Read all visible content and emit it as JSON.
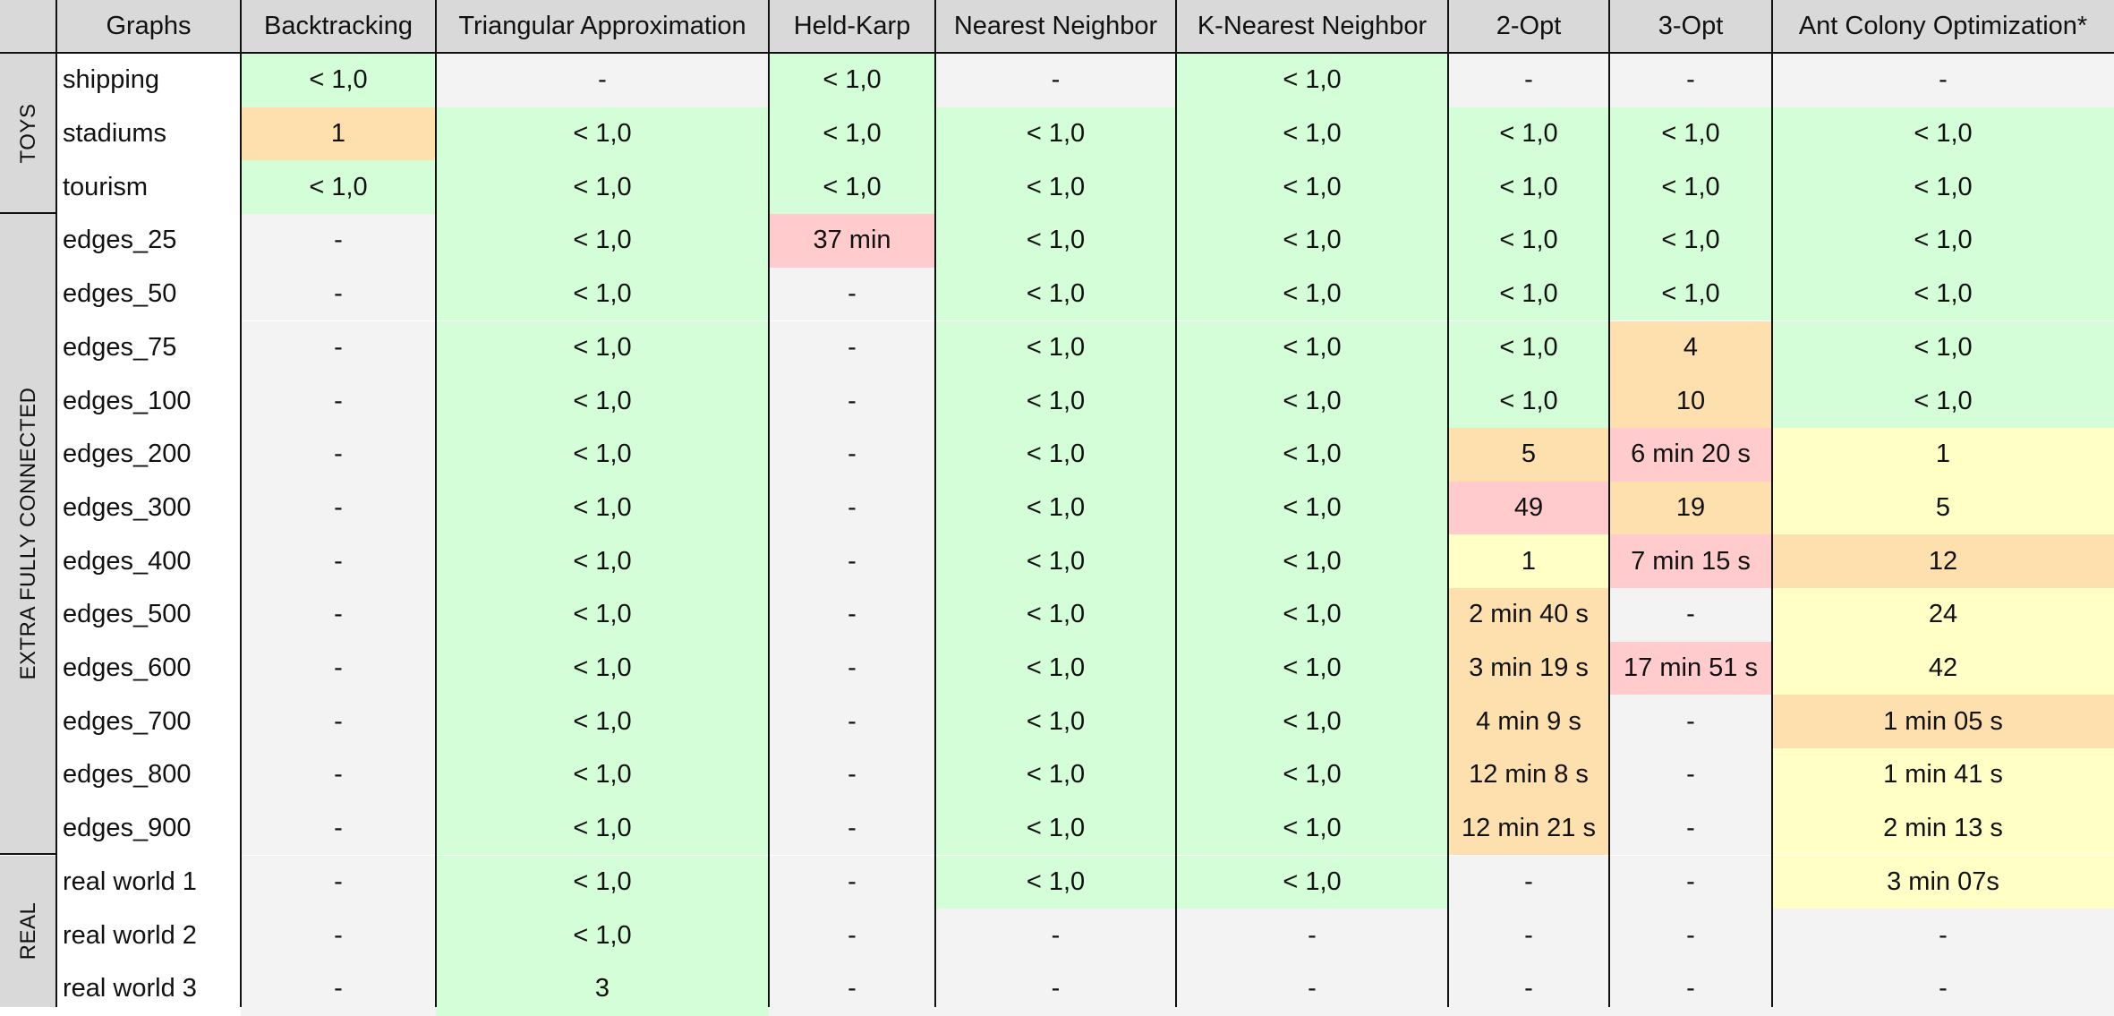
{
  "colors": {
    "header": "#d9d9d9",
    "green": "#d3fed8",
    "gray": "#f3f3f3",
    "orange": "#fde0ad",
    "pink": "#ffcbcc",
    "yellow": "#ffffc6",
    "rowlabel": "#ffffff"
  },
  "table": {
    "columns": [
      "Graphs",
      "Backtracking",
      "Triangular Approximation",
      "Held-Karp",
      "Nearest Neighbor",
      "K-Nearest Neighbor",
      "2-Opt",
      "3-Opt",
      "Ant Colony Optimization*"
    ],
    "groups": [
      {
        "label": "TOYS",
        "rows": 3
      },
      {
        "label": "EXTRA FULLY CONNECTED",
        "rows": 12
      },
      {
        "label": "REAL",
        "rows": 3
      }
    ],
    "rows": [
      {
        "name": "shipping",
        "cells": [
          [
            "< 1,0",
            "green"
          ],
          [
            "-",
            "gray"
          ],
          [
            "< 1,0",
            "green"
          ],
          [
            "-",
            "gray"
          ],
          [
            "< 1,0",
            "green"
          ],
          [
            "-",
            "gray"
          ],
          [
            "-",
            "gray"
          ],
          [
            "-",
            "gray"
          ]
        ]
      },
      {
        "name": "stadiums",
        "cells": [
          [
            "1",
            "orange"
          ],
          [
            "< 1,0",
            "green"
          ],
          [
            "< 1,0",
            "green"
          ],
          [
            "< 1,0",
            "green"
          ],
          [
            "< 1,0",
            "green"
          ],
          [
            "< 1,0",
            "green"
          ],
          [
            "< 1,0",
            "green"
          ],
          [
            "< 1,0",
            "green"
          ]
        ]
      },
      {
        "name": "tourism",
        "cells": [
          [
            "< 1,0",
            "green"
          ],
          [
            "< 1,0",
            "green"
          ],
          [
            "< 1,0",
            "green"
          ],
          [
            "< 1,0",
            "green"
          ],
          [
            "< 1,0",
            "green"
          ],
          [
            "< 1,0",
            "green"
          ],
          [
            "< 1,0",
            "green"
          ],
          [
            "< 1,0",
            "green"
          ]
        ]
      },
      {
        "name": "edges_25",
        "cells": [
          [
            "-",
            "gray"
          ],
          [
            "< 1,0",
            "green"
          ],
          [
            "37 min",
            "pink"
          ],
          [
            "< 1,0",
            "green"
          ],
          [
            "< 1,0",
            "green"
          ],
          [
            "< 1,0",
            "green"
          ],
          [
            "< 1,0",
            "green"
          ],
          [
            "< 1,0",
            "green"
          ]
        ]
      },
      {
        "name": "edges_50",
        "cells": [
          [
            "-",
            "gray"
          ],
          [
            "< 1,0",
            "green"
          ],
          [
            "-",
            "gray"
          ],
          [
            "< 1,0",
            "green"
          ],
          [
            "< 1,0",
            "green"
          ],
          [
            "< 1,0",
            "green"
          ],
          [
            "< 1,0",
            "green"
          ],
          [
            "< 1,0",
            "green"
          ]
        ]
      },
      {
        "name": "edges_75",
        "cells": [
          [
            "-",
            "gray"
          ],
          [
            "< 1,0",
            "green"
          ],
          [
            "-",
            "gray"
          ],
          [
            "< 1,0",
            "green"
          ],
          [
            "< 1,0",
            "green"
          ],
          [
            "< 1,0",
            "green"
          ],
          [
            "4",
            "orange"
          ],
          [
            "< 1,0",
            "green"
          ]
        ]
      },
      {
        "name": "edges_100",
        "cells": [
          [
            "-",
            "gray"
          ],
          [
            "< 1,0",
            "green"
          ],
          [
            "-",
            "gray"
          ],
          [
            "< 1,0",
            "green"
          ],
          [
            "< 1,0",
            "green"
          ],
          [
            "< 1,0",
            "green"
          ],
          [
            "10",
            "orange"
          ],
          [
            "< 1,0",
            "green"
          ]
        ]
      },
      {
        "name": "edges_200",
        "cells": [
          [
            "-",
            "gray"
          ],
          [
            "< 1,0",
            "green"
          ],
          [
            "-",
            "gray"
          ],
          [
            "< 1,0",
            "green"
          ],
          [
            "< 1,0",
            "green"
          ],
          [
            "5",
            "orange"
          ],
          [
            "6 min 20 s",
            "pink"
          ],
          [
            "1",
            "yellow"
          ]
        ]
      },
      {
        "name": "edges_300",
        "cells": [
          [
            "-",
            "gray"
          ],
          [
            "< 1,0",
            "green"
          ],
          [
            "-",
            "gray"
          ],
          [
            "< 1,0",
            "green"
          ],
          [
            "< 1,0",
            "green"
          ],
          [
            "49",
            "pink"
          ],
          [
            "19",
            "orange"
          ],
          [
            "5",
            "yellow"
          ]
        ]
      },
      {
        "name": "edges_400",
        "cells": [
          [
            "-",
            "gray"
          ],
          [
            "< 1,0",
            "green"
          ],
          [
            "-",
            "gray"
          ],
          [
            "< 1,0",
            "green"
          ],
          [
            "< 1,0",
            "green"
          ],
          [
            "1",
            "yellow"
          ],
          [
            "7 min 15 s",
            "pink"
          ],
          [
            "12",
            "orange"
          ]
        ]
      },
      {
        "name": "edges_500",
        "cells": [
          [
            "-",
            "gray"
          ],
          [
            "< 1,0",
            "green"
          ],
          [
            "-",
            "gray"
          ],
          [
            "< 1,0",
            "green"
          ],
          [
            "< 1,0",
            "green"
          ],
          [
            "2 min 40 s",
            "orange"
          ],
          [
            "-",
            "gray"
          ],
          [
            "24",
            "yellow"
          ]
        ]
      },
      {
        "name": "edges_600",
        "cells": [
          [
            "-",
            "gray"
          ],
          [
            "< 1,0",
            "green"
          ],
          [
            "-",
            "gray"
          ],
          [
            "< 1,0",
            "green"
          ],
          [
            "< 1,0",
            "green"
          ],
          [
            "3 min 19 s",
            "orange"
          ],
          [
            "17 min 51 s",
            "pink"
          ],
          [
            "42",
            "yellow"
          ]
        ]
      },
      {
        "name": "edges_700",
        "cells": [
          [
            "-",
            "gray"
          ],
          [
            "< 1,0",
            "green"
          ],
          [
            "-",
            "gray"
          ],
          [
            "< 1,0",
            "green"
          ],
          [
            "< 1,0",
            "green"
          ],
          [
            "4 min 9 s",
            "orange"
          ],
          [
            "-",
            "gray"
          ],
          [
            "1 min 05 s",
            "orange"
          ]
        ]
      },
      {
        "name": "edges_800",
        "cells": [
          [
            "-",
            "gray"
          ],
          [
            "< 1,0",
            "green"
          ],
          [
            "-",
            "gray"
          ],
          [
            "< 1,0",
            "green"
          ],
          [
            "< 1,0",
            "green"
          ],
          [
            "12 min 8 s",
            "orange"
          ],
          [
            "-",
            "gray"
          ],
          [
            "1 min 41 s",
            "yellow"
          ]
        ]
      },
      {
        "name": "edges_900",
        "cells": [
          [
            "-",
            "gray"
          ],
          [
            "< 1,0",
            "green"
          ],
          [
            "-",
            "gray"
          ],
          [
            "< 1,0",
            "green"
          ],
          [
            "< 1,0",
            "green"
          ],
          [
            "12 min 21 s",
            "orange"
          ],
          [
            "-",
            "gray"
          ],
          [
            "2 min 13 s",
            "yellow"
          ]
        ]
      },
      {
        "name": "real world 1",
        "cells": [
          [
            "-",
            "gray"
          ],
          [
            "< 1,0",
            "green"
          ],
          [
            "-",
            "gray"
          ],
          [
            "< 1,0",
            "green"
          ],
          [
            "< 1,0",
            "green"
          ],
          [
            "-",
            "gray"
          ],
          [
            "-",
            "gray"
          ],
          [
            "3 min 07s",
            "yellow"
          ]
        ]
      },
      {
        "name": "real world 2",
        "cells": [
          [
            "-",
            "gray"
          ],
          [
            "< 1,0",
            "green"
          ],
          [
            "-",
            "gray"
          ],
          [
            "-",
            "gray"
          ],
          [
            "-",
            "gray"
          ],
          [
            "-",
            "gray"
          ],
          [
            "-",
            "gray"
          ],
          [
            "-",
            "gray"
          ]
        ]
      },
      {
        "name": "real world 3",
        "cells": [
          [
            "-",
            "gray"
          ],
          [
            "3",
            "green"
          ],
          [
            "-",
            "gray"
          ],
          [
            "-",
            "gray"
          ],
          [
            "-",
            "gray"
          ],
          [
            "-",
            "gray"
          ],
          [
            "-",
            "gray"
          ],
          [
            "-",
            "gray"
          ]
        ]
      }
    ]
  }
}
